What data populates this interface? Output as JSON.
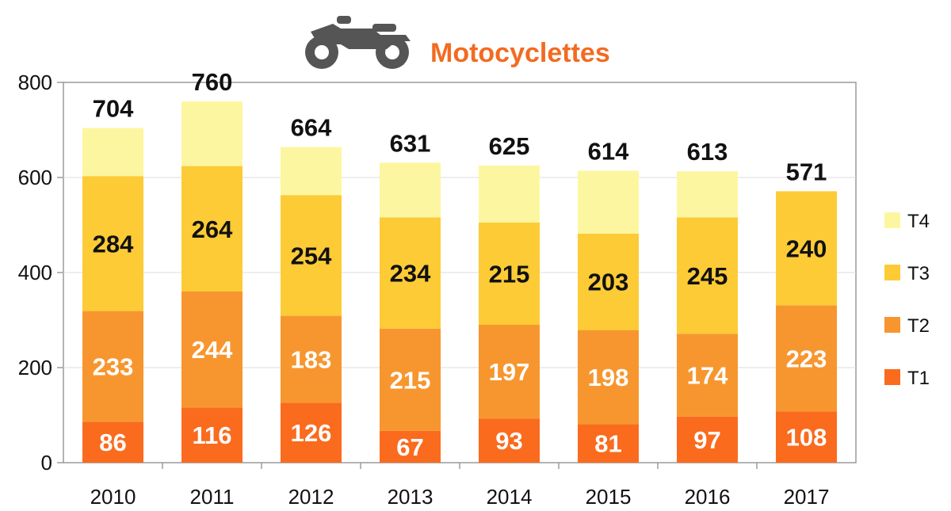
{
  "chart_data": {
    "type": "bar",
    "stacked": true,
    "title": "Motocyclettes",
    "title_icon": "motorcycle-icon",
    "categories": [
      "2010",
      "2011",
      "2012",
      "2013",
      "2014",
      "2015",
      "2016",
      "2017"
    ],
    "series": [
      {
        "name": "T1",
        "color": "#FA6B1E",
        "values": [
          86,
          116,
          126,
          67,
          93,
          81,
          97,
          108
        ]
      },
      {
        "name": "T2",
        "color": "#F7962F",
        "values": [
          233,
          244,
          183,
          215,
          197,
          198,
          174,
          223
        ]
      },
      {
        "name": "T3",
        "color": "#FDCB36",
        "values": [
          284,
          264,
          254,
          234,
          215,
          203,
          245,
          240
        ]
      },
      {
        "name": "T4",
        "color": "#FDF6A0",
        "values": [
          101,
          136,
          101,
          115,
          120,
          132,
          97,
          0
        ]
      }
    ],
    "segment_labels": {
      "T1": [
        "86",
        "116",
        "126",
        "67",
        "93",
        "81",
        "97",
        "108"
      ],
      "T2": [
        "233",
        "244",
        "183",
        "215",
        "197",
        "198",
        "174",
        "223"
      ],
      "T3": [
        "284",
        "264",
        "254",
        "234",
        "215",
        "203",
        "245",
        "240"
      ]
    },
    "totals": [
      704,
      760,
      664,
      631,
      625,
      614,
      613,
      571
    ],
    "ylim": [
      0,
      800
    ],
    "yticks": [
      0,
      200,
      400,
      600,
      800
    ],
    "legend_order": [
      "T4",
      "T3",
      "T2",
      "T1"
    ],
    "legend_position": "right",
    "grid": true,
    "title_color": "#F26B21",
    "icon_color": "#555555"
  }
}
